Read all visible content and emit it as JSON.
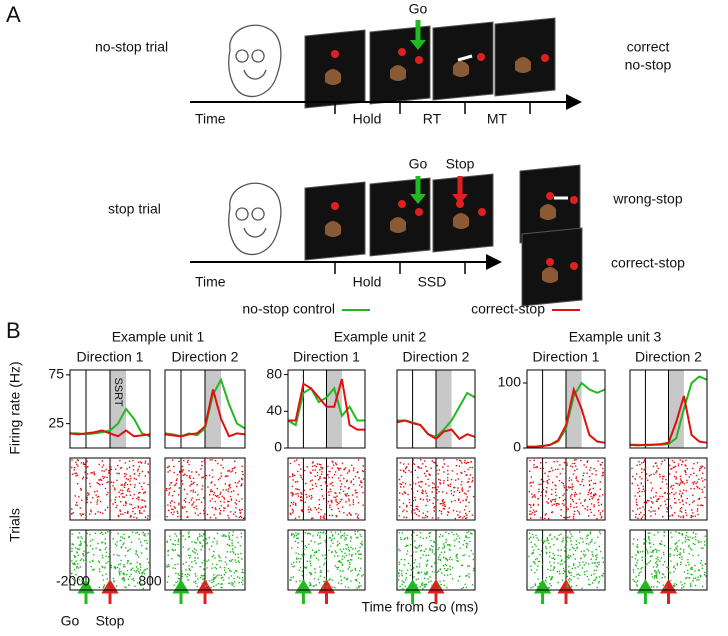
{
  "panel_a": {
    "label": "A",
    "no_stop": {
      "row_label": "no-stop trial",
      "go": "Go",
      "outcome": [
        "correct",
        "no-stop"
      ],
      "time": "Time",
      "phases": [
        "Hold",
        "RT",
        "MT"
      ]
    },
    "stop": {
      "row_label": "stop trial",
      "go": "Go",
      "stop": "Stop",
      "time": "Time",
      "phases": [
        "Hold",
        "SSD"
      ],
      "outcomes": [
        "wrong-stop",
        "correct-stop"
      ]
    }
  },
  "panel_b": {
    "label": "B",
    "units": [
      "Example unit 1",
      "Example unit 2",
      "Example unit 3"
    ],
    "ylabel_rate": "Firing rate (Hz)",
    "ylabel_trials": "Trials",
    "xlabel": "Time from Go (ms)",
    "go": "Go",
    "stop": "Stop"
  },
  "chart_data": [
    {
      "type": "line",
      "title": "Direction 1",
      "x": [
        -200,
        -100,
        0,
        100,
        200,
        300,
        400,
        500,
        600,
        700,
        800
      ],
      "xlim": [
        -200,
        800
      ],
      "xticks": [
        -200,
        0,
        800
      ],
      "ylim": [
        0,
        80
      ],
      "yticks": [
        25,
        75
      ],
      "events": [
        0,
        300
      ],
      "shade": [
        300,
        500
      ],
      "shade_label": "SSRT",
      "series": [
        {
          "name": "no-stop control",
          "color": "#22b822",
          "values": [
            15,
            15,
            14,
            15,
            16,
            18,
            25,
            40,
            30,
            15,
            12
          ]
        },
        {
          "name": "correct-stop",
          "color": "#e01010",
          "values": [
            15,
            14,
            15,
            16,
            18,
            15,
            12,
            18,
            12,
            13,
            14
          ]
        }
      ]
    },
    {
      "type": "line",
      "title": "Direction 2",
      "x": [
        -200,
        -100,
        0,
        100,
        200,
        300,
        400,
        500,
        600,
        700,
        800
      ],
      "xlim": [
        -200,
        800
      ],
      "ylim": [
        0,
        80
      ],
      "events": [
        0,
        300
      ],
      "shade": [
        300,
        500
      ],
      "series": [
        {
          "color": "#22b822",
          "values": [
            15,
            14,
            12,
            15,
            13,
            20,
            55,
            70,
            45,
            25,
            20
          ]
        },
        {
          "color": "#e01010",
          "values": [
            14,
            13,
            12,
            14,
            15,
            22,
            60,
            30,
            12,
            15,
            14
          ]
        }
      ]
    },
    {
      "type": "line",
      "title": "Direction 1",
      "x": [
        -200,
        -100,
        0,
        100,
        200,
        300,
        400,
        500,
        600,
        700,
        800
      ],
      "xlim": [
        -200,
        800
      ],
      "ylim": [
        0,
        85
      ],
      "yticks": [
        0,
        40,
        80
      ],
      "events": [
        0,
        300
      ],
      "shade": [
        300,
        500
      ],
      "series": [
        {
          "color": "#22b822",
          "values": [
            30,
            25,
            60,
            65,
            50,
            55,
            65,
            35,
            45,
            30,
            30
          ]
        },
        {
          "color": "#e01010",
          "values": [
            30,
            30,
            70,
            65,
            55,
            45,
            45,
            75,
            25,
            20,
            20
          ]
        }
      ]
    },
    {
      "type": "line",
      "title": "Direction 2",
      "x": [
        -200,
        -100,
        0,
        100,
        200,
        300,
        400,
        500,
        600,
        700,
        800
      ],
      "xlim": [
        -200,
        800
      ],
      "ylim": [
        0,
        85
      ],
      "events": [
        0,
        300
      ],
      "shade": [
        300,
        500
      ],
      "series": [
        {
          "color": "#22b822",
          "values": [
            30,
            30,
            28,
            25,
            15,
            12,
            20,
            30,
            45,
            60,
            55
          ]
        },
        {
          "color": "#e01010",
          "values": [
            28,
            30,
            27,
            25,
            15,
            10,
            18,
            20,
            10,
            15,
            12
          ]
        }
      ]
    },
    {
      "type": "line",
      "title": "Direction 1",
      "x": [
        -200,
        -100,
        0,
        100,
        200,
        300,
        400,
        500,
        600,
        700,
        800
      ],
      "xlim": [
        -200,
        800
      ],
      "ylim": [
        0,
        120
      ],
      "yticks": [
        0,
        100
      ],
      "events": [
        0,
        300
      ],
      "shade": [
        300,
        500
      ],
      "series": [
        {
          "color": "#22b822",
          "values": [
            2,
            2,
            3,
            5,
            10,
            30,
            80,
            100,
            90,
            85,
            90
          ]
        },
        {
          "color": "#e01010",
          "values": [
            2,
            2,
            3,
            5,
            12,
            35,
            90,
            60,
            20,
            10,
            8
          ]
        }
      ]
    },
    {
      "type": "line",
      "title": "Direction 2",
      "x": [
        -200,
        -100,
        0,
        100,
        200,
        300,
        400,
        500,
        600,
        700,
        800
      ],
      "xlim": [
        -200,
        800
      ],
      "ylim": [
        0,
        120
      ],
      "events": [
        0,
        300
      ],
      "shade": [
        300,
        500
      ],
      "series": [
        {
          "color": "#22b822",
          "values": [
            5,
            5,
            4,
            5,
            5,
            6,
            15,
            60,
            100,
            110,
            105
          ]
        },
        {
          "color": "#e01010",
          "values": [
            5,
            4,
            5,
            5,
            6,
            8,
            40,
            80,
            20,
            10,
            8
          ]
        }
      ]
    }
  ]
}
